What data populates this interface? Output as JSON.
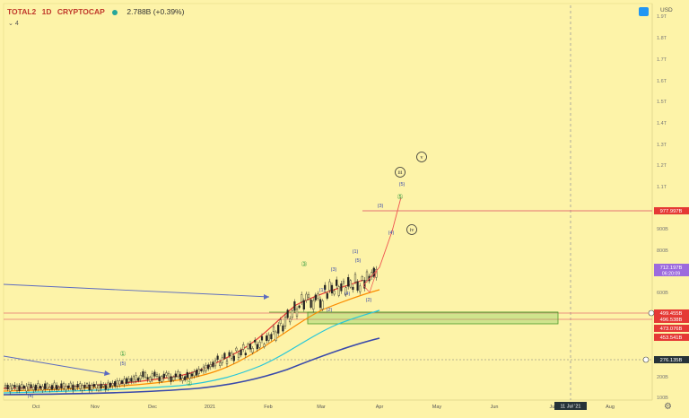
{
  "header": {
    "symbol": "TOTAL2",
    "interval": "1D",
    "exchange": "CRYPTOCAP",
    "price_change": "2.788B (+0.39%)",
    "indicator_count": "4",
    "currency": "USD"
  },
  "chart_data": {
    "type": "candlestick",
    "title": "",
    "x_ticks": [
      "Oct",
      "Nov",
      "Dec",
      "2021",
      "Feb",
      "Mar",
      "Apr",
      "May",
      "Jun",
      "Jul",
      "Aug"
    ],
    "y_ticks": [
      "1.9T",
      "1.8T",
      "1.7T",
      "1.6T",
      "1.5T",
      "1.4T",
      "1.3T",
      "1.2T",
      "1.1T",
      "900B",
      "800B",
      "600B",
      "200B",
      "100B"
    ],
    "price_labels": [
      {
        "text": "977.997B",
        "color": "#e53935",
        "value": 977.997
      },
      {
        "text": "712.197B",
        "sub": "06:20:09",
        "color": "#9c6ade",
        "value": 712.197
      },
      {
        "text": "499.455B",
        "color": "#e53935",
        "value": 499.455
      },
      {
        "text": "496.538B",
        "color": "#e53935",
        "value": 496.538
      },
      {
        "text": "473.076B",
        "color": "#e53935",
        "value": 473.076
      },
      {
        "text": "453.541B",
        "color": "#e53935",
        "value": 453.541
      },
      {
        "text": "276.135B",
        "color": "#263238",
        "value": 276.135
      }
    ],
    "time_label": "11 Jul '21",
    "wave_labels": [
      {
        "text": "(4)",
        "color": "#3949ab"
      },
      {
        "text": "①",
        "color": "#43a047"
      },
      {
        "text": "(5)",
        "color": "#3949ab"
      },
      {
        "text": "②",
        "color": "#43a047"
      },
      {
        "text": "③",
        "color": "#43a047"
      },
      {
        "text": "(1)",
        "color": "#3949ab"
      },
      {
        "text": "(2)",
        "color": "#3949ab"
      },
      {
        "text": "(3)",
        "color": "#3949ab"
      },
      {
        "text": "(4)",
        "color": "#3949ab"
      },
      {
        "text": "(1)",
        "color": "#3949ab"
      },
      {
        "text": "(5)",
        "color": "#3949ab"
      },
      {
        "text": "(2)",
        "color": "#3949ab"
      },
      {
        "text": "(3)",
        "color": "#3949ab"
      },
      {
        "text": "(4)",
        "color": "#3949ab"
      },
      {
        "text": "(5)",
        "color": "#3949ab"
      },
      {
        "text": "⑤",
        "color": "#43a047"
      },
      {
        "text": "iii",
        "color": "#333333"
      },
      {
        "text": "iv",
        "color": "#333333"
      },
      {
        "text": "v",
        "color": "#333333"
      }
    ],
    "moving_averages": [
      {
        "color": "#e53935"
      },
      {
        "color": "#fb8c00"
      },
      {
        "color": "#26c6da"
      },
      {
        "color": "#3949ab"
      }
    ]
  }
}
